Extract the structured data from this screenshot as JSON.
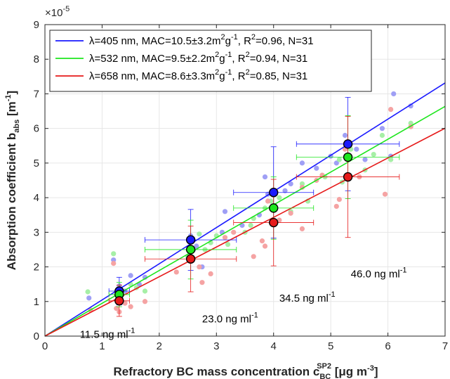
{
  "chart_data": {
    "type": "scatter",
    "title": "",
    "xlabel": {
      "main": "Refractory BC  mass concentration c",
      "sub": "BC",
      "sup": "SP2",
      "unit_pre": " [μg m",
      "unit_sup": "-3",
      "unit_post": "]"
    },
    "ylabel": {
      "main": "Absorption coefficient b",
      "sub": "abs",
      "unit_pre": " [m",
      "unit_sup": "-1",
      "unit_post": "]"
    },
    "xlim": [
      0,
      7
    ],
    "ylim": [
      0,
      9
    ],
    "x_ticks": [
      0,
      1,
      2,
      3,
      4,
      5,
      6,
      7
    ],
    "y_ticks": [
      0,
      1,
      2,
      3,
      4,
      5,
      6,
      7,
      8,
      9
    ],
    "y_multiplier": {
      "base": "×10",
      "exp": "-5"
    },
    "grid": true,
    "legend_position": "top-left",
    "series": [
      {
        "name": "λ=405 nm, MAC=10.5±3.2m²g⁻¹, R²=0.96, N=31",
        "legend": {
          "pre": "λ=405 nm, MAC=10.5±3.2m",
          "sup1": "2",
          "mid": "g",
          "sup2": "-1",
          "r2pre": ", R",
          "r2sup": "2",
          "post": "=0.96, N=31"
        },
        "color": "#1a1aff",
        "light_color": "#9f9ff5",
        "fit_slope": 1.045,
        "points": [
          [
            0.77,
            1.1
          ],
          [
            1.2,
            2.2
          ],
          [
            1.35,
            1.25
          ],
          [
            1.5,
            1.75
          ],
          [
            1.75,
            1.7
          ],
          [
            1.3,
            1.45
          ],
          [
            1.65,
            1.5
          ],
          [
            2.55,
            2.9
          ],
          [
            2.65,
            2.6
          ],
          [
            2.75,
            2.0
          ],
          [
            3.15,
            3.6
          ],
          [
            3.45,
            3.2
          ],
          [
            3.75,
            3.5
          ],
          [
            3.85,
            4.6
          ],
          [
            3.9,
            4.1
          ],
          [
            4.2,
            4.2
          ],
          [
            4.5,
            5.0
          ],
          [
            4.75,
            4.85
          ],
          [
            5.1,
            5.0
          ],
          [
            5.25,
            5.8
          ],
          [
            5.6,
            5.1
          ],
          [
            5.9,
            6.0
          ],
          [
            6.1,
            7.0
          ],
          [
            6.4,
            6.65
          ],
          [
            1.4,
            1.3
          ],
          [
            2.6,
            2.5
          ],
          [
            3.1,
            3.0
          ],
          [
            4.3,
            4.4
          ],
          [
            5.0,
            5.2
          ],
          [
            5.45,
            5.4
          ],
          [
            6.05,
            5.2
          ]
        ],
        "means": [
          {
            "x": 1.3,
            "y": 1.3,
            "xerr": 0.18,
            "yerr": 0.4
          },
          {
            "x": 2.55,
            "y": 2.78,
            "xerr": 0.8,
            "yerr": 0.88
          },
          {
            "x": 4.0,
            "y": 4.15,
            "xerr": 0.7,
            "yerr": 1.32
          },
          {
            "x": 5.3,
            "y": 5.55,
            "xerr": 0.9,
            "yerr": 1.35
          }
        ]
      },
      {
        "name": "λ=532 nm, MAC=9.5±2.2m²g⁻¹, R²=0.94, N=31",
        "legend": {
          "pre": "λ=532 nm, MAC=9.5±2.2m",
          "sup1": "2",
          "mid": "g",
          "sup2": "-1",
          "r2pre": ", R",
          "r2sup": "2",
          "post": "=0.94, N=31"
        },
        "color": "#1ee61e",
        "light_color": "#a6efa6",
        "fit_slope": 0.948,
        "points": [
          [
            0.75,
            1.28
          ],
          [
            1.2,
            2.38
          ],
          [
            1.25,
            1.2
          ],
          [
            1.5,
            1.5
          ],
          [
            1.75,
            1.3
          ],
          [
            1.35,
            1.2
          ],
          [
            2.7,
            2.95
          ],
          [
            2.9,
            2.7
          ],
          [
            3.2,
            2.65
          ],
          [
            3.5,
            3.0
          ],
          [
            3.65,
            3.4
          ],
          [
            3.85,
            3.7
          ],
          [
            3.95,
            3.9
          ],
          [
            4.5,
            4.4
          ],
          [
            4.9,
            4.6
          ],
          [
            5.15,
            5.1
          ],
          [
            5.6,
            4.8
          ],
          [
            5.9,
            5.8
          ],
          [
            6.05,
            5.1
          ],
          [
            6.4,
            6.15
          ],
          [
            2.5,
            2.3
          ],
          [
            3.0,
            2.9
          ],
          [
            4.1,
            4.0
          ],
          [
            4.6,
            3.9
          ],
          [
            5.2,
            4.45
          ],
          [
            1.6,
            1.4
          ],
          [
            2.8,
            2.5
          ],
          [
            3.6,
            3.2
          ],
          [
            4.3,
            3.6
          ],
          [
            5.35,
            5.4
          ],
          [
            5.75,
            5.25
          ]
        ],
        "means": [
          {
            "x": 1.3,
            "y": 1.2,
            "xerr": 0.18,
            "yerr": 0.35
          },
          {
            "x": 2.55,
            "y": 2.5,
            "xerr": 0.8,
            "yerr": 0.85
          },
          {
            "x": 4.0,
            "y": 3.7,
            "xerr": 0.7,
            "yerr": 0.9
          },
          {
            "x": 5.3,
            "y": 5.17,
            "xerr": 0.9,
            "yerr": 1.2
          }
        ]
      },
      {
        "name": "λ=658 nm, MAC=8.6±3.3m²g⁻¹, R²=0.85, N=31",
        "legend": {
          "pre": "λ=658 nm, MAC=8.6±3.3m",
          "sup1": "2",
          "mid": "g",
          "sup2": "-1",
          "r2pre": ", R",
          "r2sup": "2",
          "post": "=0.85, N=31"
        },
        "color": "#e61a1a",
        "light_color": "#f5a3a3",
        "fit_slope": 0.858,
        "points": [
          [
            0.8,
            0.75
          ],
          [
            1.2,
            2.1
          ],
          [
            1.25,
            0.8
          ],
          [
            1.3,
            0.7
          ],
          [
            1.5,
            0.85
          ],
          [
            1.75,
            1.0
          ],
          [
            2.55,
            2.2
          ],
          [
            2.75,
            1.55
          ],
          [
            2.9,
            1.8
          ],
          [
            3.15,
            2.85
          ],
          [
            3.65,
            2.3
          ],
          [
            3.8,
            2.75
          ],
          [
            3.85,
            2.6
          ],
          [
            3.9,
            3.9
          ],
          [
            4.3,
            3.55
          ],
          [
            4.5,
            3.1
          ],
          [
            4.5,
            4.3
          ],
          [
            4.85,
            4.65
          ],
          [
            5.1,
            3.75
          ],
          [
            5.15,
            3.95
          ],
          [
            5.25,
            5.4
          ],
          [
            5.95,
            4.1
          ],
          [
            6.05,
            6.55
          ],
          [
            6.4,
            6.05
          ],
          [
            1.4,
            0.95
          ],
          [
            2.7,
            2.0
          ],
          [
            3.3,
            3.0
          ],
          [
            4.1,
            3.35
          ],
          [
            4.75,
            4.5
          ],
          [
            5.5,
            4.6
          ],
          [
            2.3,
            1.85
          ]
        ],
        "means": [
          {
            "x": 1.3,
            "y": 1.02,
            "xerr": 0.18,
            "yerr": 0.45
          },
          {
            "x": 2.55,
            "y": 2.23,
            "xerr": 0.8,
            "yerr": 0.95
          },
          {
            "x": 4.0,
            "y": 3.28,
            "xerr": 0.7,
            "yerr": 1.25
          },
          {
            "x": 5.3,
            "y": 4.6,
            "xerr": 0.9,
            "yerr": 1.75
          }
        ]
      }
    ],
    "annotations": [
      {
        "text": "11.5 ng ml",
        "sup": "-1",
        "x": 1.3,
        "y": 0.15
      },
      {
        "text": "23.0 ng ml",
        "sup": "-1",
        "x": 2.75,
        "y": 0.6
      },
      {
        "text": "34.5 ng ml",
        "sup": "-1",
        "x": 4.1,
        "y": 1.2
      },
      {
        "text": "46.0 ng ml",
        "sup": "-1",
        "x": 5.35,
        "y": 1.9
      }
    ]
  }
}
